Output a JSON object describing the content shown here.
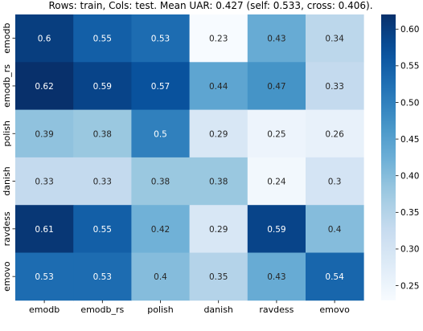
{
  "chart_data": {
    "type": "heatmap",
    "title": "Rows: train, Cols: test. Mean UAR: 0.427 (self: 0.533, cross: 0.406).",
    "rows": [
      "emodb",
      "emodb_rs",
      "polish",
      "danish",
      "ravdess",
      "emovo"
    ],
    "cols": [
      "emodb",
      "emodb_rs",
      "polish",
      "danish",
      "ravdess",
      "emovo"
    ],
    "values": [
      [
        0.6,
        0.55,
        0.53,
        0.23,
        0.43,
        0.34
      ],
      [
        0.62,
        0.59,
        0.57,
        0.44,
        0.47,
        0.33
      ],
      [
        0.39,
        0.38,
        0.5,
        0.29,
        0.25,
        0.26
      ],
      [
        0.33,
        0.33,
        0.38,
        0.38,
        0.24,
        0.3
      ],
      [
        0.61,
        0.55,
        0.42,
        0.29,
        0.59,
        0.4
      ],
      [
        0.53,
        0.53,
        0.4,
        0.35,
        0.43,
        0.54
      ]
    ],
    "colorbar": {
      "min": 0.23,
      "max": 0.62,
      "ticks": [
        0.25,
        0.3,
        0.35,
        0.4,
        0.45,
        0.5,
        0.55,
        0.6
      ],
      "colormap": "Blues"
    },
    "xlabel": "",
    "ylabel": ""
  }
}
